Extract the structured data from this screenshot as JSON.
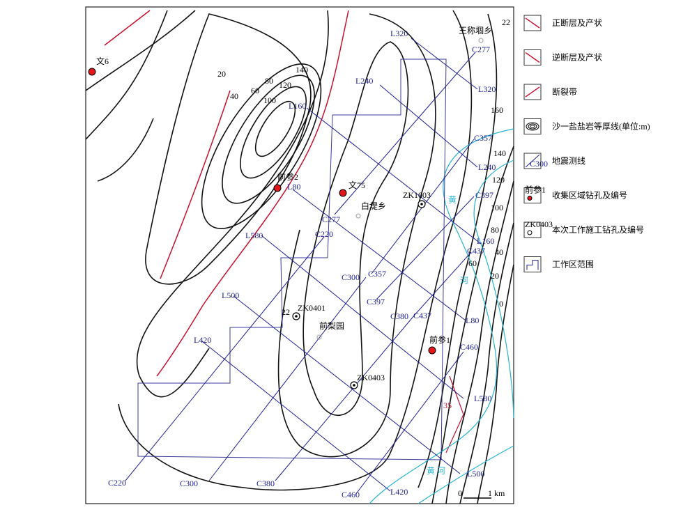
{
  "legend": [
    "正断层及产状",
    "逆断层及产状",
    "断裂带",
    "沙一盐盐岩等厚线(单位:m)",
    "地震测线",
    "收集区域钻孔及编号",
    "本次工作施工钻孔及编号",
    "工作区范围"
  ],
  "legend_icon_labels": [
    "C300",
    "前参1",
    "ZK0403"
  ],
  "collected_wells": [
    "文6",
    "前参2",
    "文75",
    "前参1"
  ],
  "survey_wells": [
    "ZK1003",
    "ZK0401",
    "ZK0403"
  ],
  "places": [
    "王称堌乡",
    "白堤乡",
    "前梨园"
  ],
  "seismic_lines": [
    "L320",
    "L240",
    "L160",
    "L80",
    "L580",
    "L500",
    "L420",
    "C277",
    "C357",
    "C397",
    "C437",
    "C220",
    "C300",
    "C380",
    "C460"
  ],
  "contour_labels": [
    "20",
    "40",
    "60",
    "80",
    "100",
    "120",
    "140",
    "160",
    "140",
    "120",
    "100",
    "80",
    "60",
    "40",
    "20",
    "0"
  ],
  "river_labels": [
    "黄",
    "河",
    "黄 河"
  ],
  "annotations": [
    "22",
    "22",
    "35"
  ],
  "scale": {
    "zero": "0",
    "length": "1 km"
  }
}
